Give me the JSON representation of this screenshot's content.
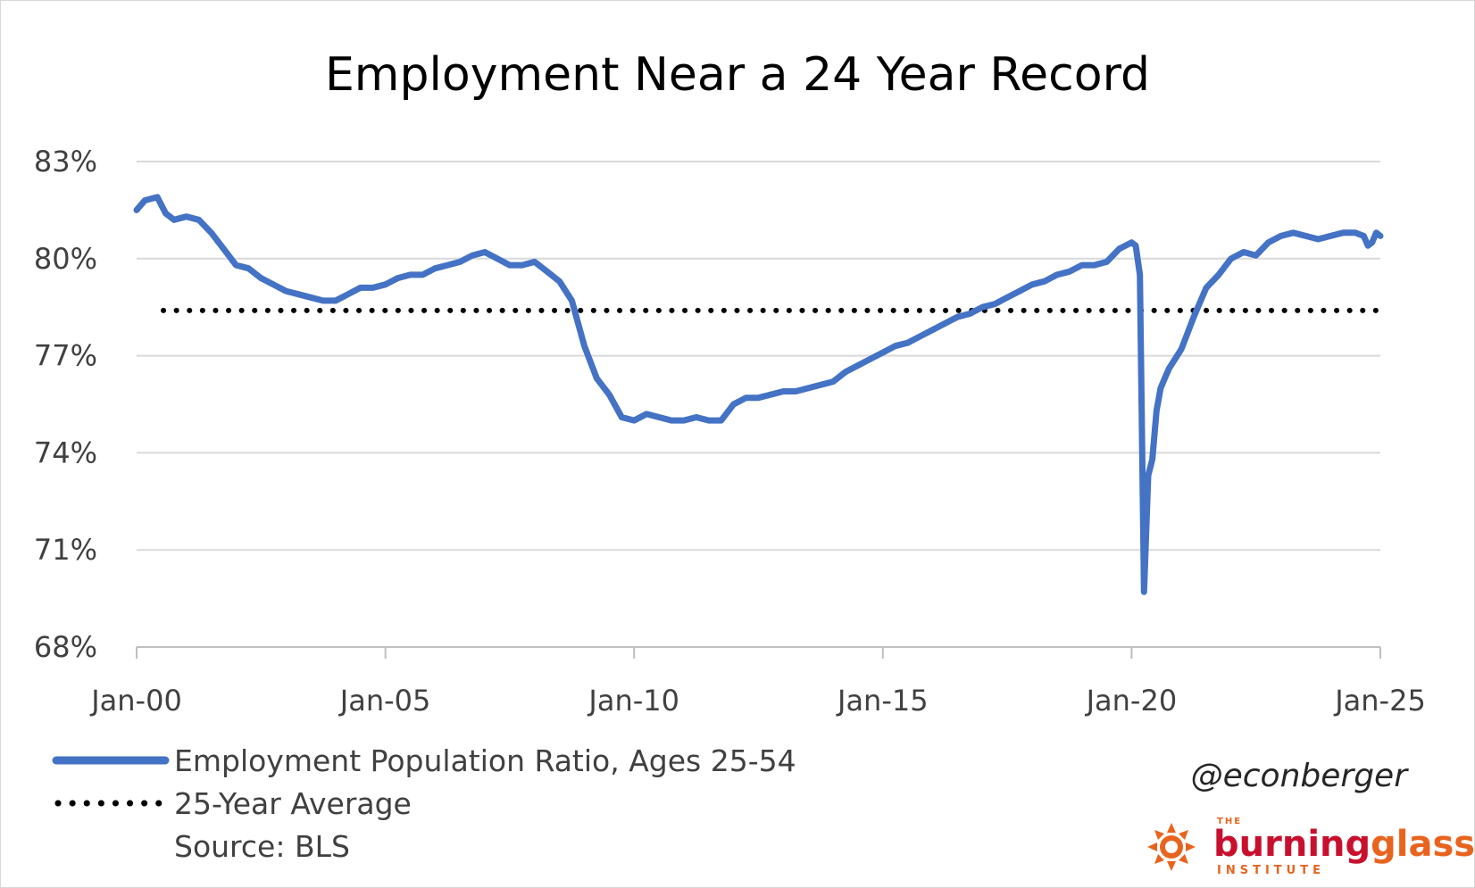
{
  "chart_data": {
    "type": "line",
    "title": "Employment Near a 24 Year Record",
    "ylim": [
      68,
      83
    ],
    "y_ticks": [
      "83%",
      "80%",
      "77%",
      "74%",
      "71%",
      "68%"
    ],
    "y_tick_values": [
      83,
      80,
      77,
      74,
      71,
      68
    ],
    "x_ticks": [
      "Jan-00",
      "Jan-05",
      "Jan-10",
      "Jan-15",
      "Jan-20",
      "Jan-25"
    ],
    "x_tick_years": [
      2000,
      2005,
      2010,
      2015,
      2020,
      2025
    ],
    "grid": "horizontal",
    "legend_position": "bottom-left",
    "series": [
      {
        "name": "Employment Population Ratio, Ages 25-54",
        "color": "#4472c4",
        "style": "solid",
        "x": [
          "Jan-00",
          "Mar-00",
          "Jun-00",
          "Aug-00",
          "Oct-00",
          "Jan-01",
          "Apr-01",
          "Jul-01",
          "Oct-01",
          "Jan-02",
          "Apr-02",
          "Jul-02",
          "Oct-02",
          "Jan-03",
          "Apr-03",
          "Jul-03",
          "Oct-03",
          "Jan-04",
          "Apr-04",
          "Jul-04",
          "Oct-04",
          "Jan-05",
          "Apr-05",
          "Jul-05",
          "Oct-05",
          "Jan-06",
          "Apr-06",
          "Jul-06",
          "Oct-06",
          "Jan-07",
          "Apr-07",
          "Jul-07",
          "Oct-07",
          "Jan-08",
          "Apr-08",
          "Jul-08",
          "Oct-08",
          "Jan-09",
          "Apr-09",
          "Jul-09",
          "Oct-09",
          "Jan-10",
          "Apr-10",
          "Jul-10",
          "Oct-10",
          "Jan-11",
          "Apr-11",
          "Jul-11",
          "Oct-11",
          "Jan-12",
          "Apr-12",
          "Jul-12",
          "Oct-12",
          "Jan-13",
          "Apr-13",
          "Jul-13",
          "Oct-13",
          "Jan-14",
          "Apr-14",
          "Jul-14",
          "Oct-14",
          "Jan-15",
          "Apr-15",
          "Jul-15",
          "Oct-15",
          "Jan-16",
          "Apr-16",
          "Jul-16",
          "Oct-16",
          "Jan-17",
          "Apr-17",
          "Jul-17",
          "Oct-17",
          "Jan-18",
          "Apr-18",
          "Jul-18",
          "Oct-18",
          "Jan-19",
          "Apr-19",
          "Jul-19",
          "Oct-19",
          "Jan-20",
          "Feb-20",
          "Mar-20",
          "Apr-20",
          "May-20",
          "Jun-20",
          "Jul-20",
          "Aug-20",
          "Sep-20",
          "Oct-20",
          "Jan-21",
          "Apr-21",
          "Jul-21",
          "Oct-21",
          "Jan-22",
          "Apr-22",
          "Jul-22",
          "Oct-22",
          "Jan-23",
          "Apr-23",
          "Jul-23",
          "Oct-23",
          "Jan-24",
          "Apr-24",
          "Jul-24",
          "Sep-24",
          "Oct-24",
          "Nov-24",
          "Dec-24",
          "Jan-25"
        ],
        "values": [
          81.5,
          81.8,
          81.9,
          81.4,
          81.2,
          81.3,
          81.2,
          80.8,
          80.3,
          79.8,
          79.7,
          79.4,
          79.2,
          79.0,
          78.9,
          78.8,
          78.7,
          78.7,
          78.9,
          79.1,
          79.1,
          79.2,
          79.4,
          79.5,
          79.5,
          79.7,
          79.8,
          79.9,
          80.1,
          80.2,
          80.0,
          79.8,
          79.8,
          79.9,
          79.6,
          79.3,
          78.7,
          77.3,
          76.3,
          75.8,
          75.1,
          75.0,
          75.2,
          75.1,
          75.0,
          75.0,
          75.1,
          75.0,
          75.0,
          75.5,
          75.7,
          75.7,
          75.8,
          75.9,
          75.9,
          76.0,
          76.1,
          76.2,
          76.5,
          76.7,
          76.9,
          77.1,
          77.3,
          77.4,
          77.6,
          77.8,
          78.0,
          78.2,
          78.3,
          78.5,
          78.6,
          78.8,
          79.0,
          79.2,
          79.3,
          79.5,
          79.6,
          79.8,
          79.8,
          79.9,
          80.3,
          80.5,
          80.4,
          79.5,
          69.7,
          73.3,
          73.8,
          75.3,
          76.0,
          76.3,
          76.6,
          77.2,
          78.2,
          79.1,
          79.5,
          80.0,
          80.2,
          80.1,
          80.5,
          80.7,
          80.8,
          80.7,
          80.6,
          80.7,
          80.8,
          80.8,
          80.7,
          80.4,
          80.5,
          80.8,
          80.7
        ]
      },
      {
        "name": "25-Year Average",
        "color": "#000000",
        "style": "dotted",
        "value": 78.4
      }
    ],
    "source": "Source: BLS"
  },
  "attribution": {
    "handle": "@econberger",
    "logo_text": {
      "the": "THE",
      "burning": "burning",
      "glass": "glass",
      "institute": "INSTITUTE"
    },
    "logo_colors": {
      "primary": "#e8641e",
      "secondary": "#c8102e"
    }
  }
}
